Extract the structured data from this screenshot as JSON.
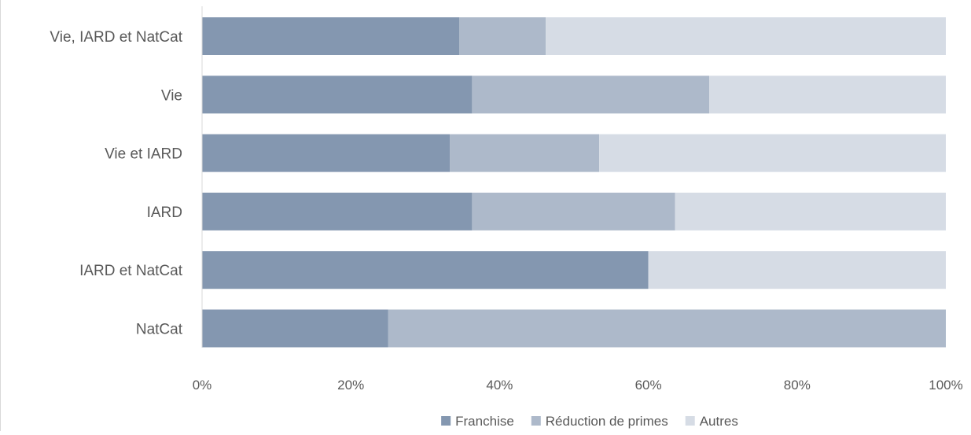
{
  "chart_data": {
    "type": "bar",
    "orientation": "horizontal",
    "stacked": "percent",
    "categories": [
      "Vie, IARD et NatCat",
      "Vie",
      "Vie et IARD",
      "IARD",
      "IARD et NatCat",
      "NatCat"
    ],
    "series": [
      {
        "name": "Franchise",
        "color": "#8497b0",
        "values": [
          34.6,
          36.3,
          33.3,
          36.3,
          60.0,
          25.0
        ]
      },
      {
        "name": "Réduction de primes",
        "color": "#adb9ca",
        "values": [
          11.6,
          31.9,
          20.1,
          27.3,
          0.0,
          75.0
        ]
      },
      {
        "name": "Autres",
        "color": "#d6dce5",
        "values": [
          53.8,
          31.8,
          46.6,
          36.4,
          40.0,
          0.0
        ]
      }
    ],
    "xlim": [
      0,
      100
    ],
    "x_ticks": [
      "0%",
      "20%",
      "40%",
      "60%",
      "80%",
      "100%"
    ],
    "grid": false,
    "legend_position": "bottom"
  }
}
